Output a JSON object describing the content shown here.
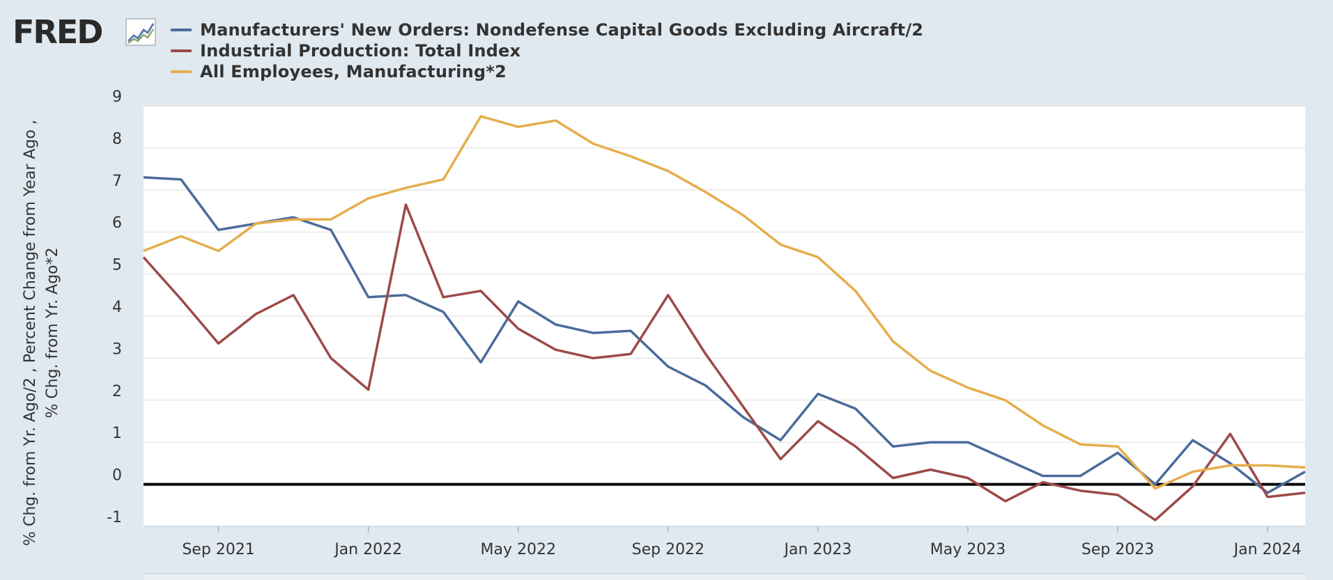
{
  "logo": {
    "text": "FRED"
  },
  "colors": {
    "background": "#e1e9f0",
    "plot_background": "#ffffff",
    "gridline": "#dddddd",
    "zero_line": "#000000"
  },
  "chart_data": {
    "type": "line",
    "title": "",
    "ylabel": "% Chg. from Yr. Ago/2 , Percent Change from Year Ago , % Chg. from Yr. Ago*2",
    "ylim": [
      -1,
      9
    ],
    "yticks": [
      9,
      8,
      7,
      6,
      5,
      4,
      3,
      2,
      1,
      0,
      -1
    ],
    "grid": true,
    "legend_position": "top-left",
    "x": [
      "2021-07",
      "2021-08",
      "2021-09",
      "2021-10",
      "2021-11",
      "2021-12",
      "2022-01",
      "2022-02",
      "2022-03",
      "2022-04",
      "2022-05",
      "2022-06",
      "2022-07",
      "2022-08",
      "2022-09",
      "2022-10",
      "2022-11",
      "2022-12",
      "2023-01",
      "2023-02",
      "2023-03",
      "2023-04",
      "2023-05",
      "2023-06",
      "2023-07",
      "2023-08",
      "2023-09",
      "2023-10",
      "2023-11",
      "2023-12",
      "2024-01",
      "2024-02"
    ],
    "xticks": [
      {
        "label": "Sep 2021",
        "x": "2021-09"
      },
      {
        "label": "Jan 2022",
        "x": "2022-01"
      },
      {
        "label": "May 2022",
        "x": "2022-05"
      },
      {
        "label": "Sep 2022",
        "x": "2022-09"
      },
      {
        "label": "Jan 2023",
        "x": "2023-01"
      },
      {
        "label": "May 2023",
        "x": "2023-05"
      },
      {
        "label": "Sep 2023",
        "x": "2023-09"
      },
      {
        "label": "Jan 2024",
        "x": "2024-01"
      }
    ],
    "series": [
      {
        "name": "Manufacturers' New Orders: Nondefense Capital Goods Excluding Aircraft/2",
        "color": "#4a6b9b",
        "values": [
          7.3,
          7.25,
          6.05,
          6.2,
          6.35,
          6.05,
          4.45,
          4.5,
          4.1,
          2.9,
          4.35,
          3.8,
          3.6,
          3.65,
          2.8,
          2.35,
          1.6,
          1.05,
          2.15,
          1.8,
          0.9,
          1.0,
          1.0,
          0.6,
          0.2,
          0.2,
          0.75,
          0.0,
          1.05,
          0.5,
          -0.2,
          0.3
        ]
      },
      {
        "name": "Industrial Production: Total Index",
        "color": "#9b4a49",
        "values": [
          5.4,
          4.4,
          3.35,
          4.05,
          4.5,
          3.0,
          2.25,
          6.65,
          4.45,
          4.6,
          3.7,
          3.2,
          3.0,
          3.1,
          4.5,
          3.1,
          1.85,
          0.6,
          1.5,
          0.9,
          0.15,
          0.35,
          0.15,
          -0.4,
          0.05,
          -0.15,
          -0.25,
          -0.85,
          -0.05,
          1.2,
          -0.3,
          -0.2
        ]
      },
      {
        "name": "All Employees, Manufacturing*2",
        "color": "#e6ad4c",
        "values": [
          5.55,
          5.9,
          5.55,
          6.2,
          6.3,
          6.3,
          6.8,
          7.05,
          7.25,
          8.75,
          8.5,
          8.65,
          8.1,
          7.8,
          7.45,
          6.95,
          6.4,
          5.7,
          5.4,
          4.6,
          3.4,
          2.7,
          2.3,
          2.0,
          1.4,
          0.95,
          0.9,
          -0.1,
          0.3,
          0.45,
          0.45,
          0.4
        ]
      }
    ]
  }
}
